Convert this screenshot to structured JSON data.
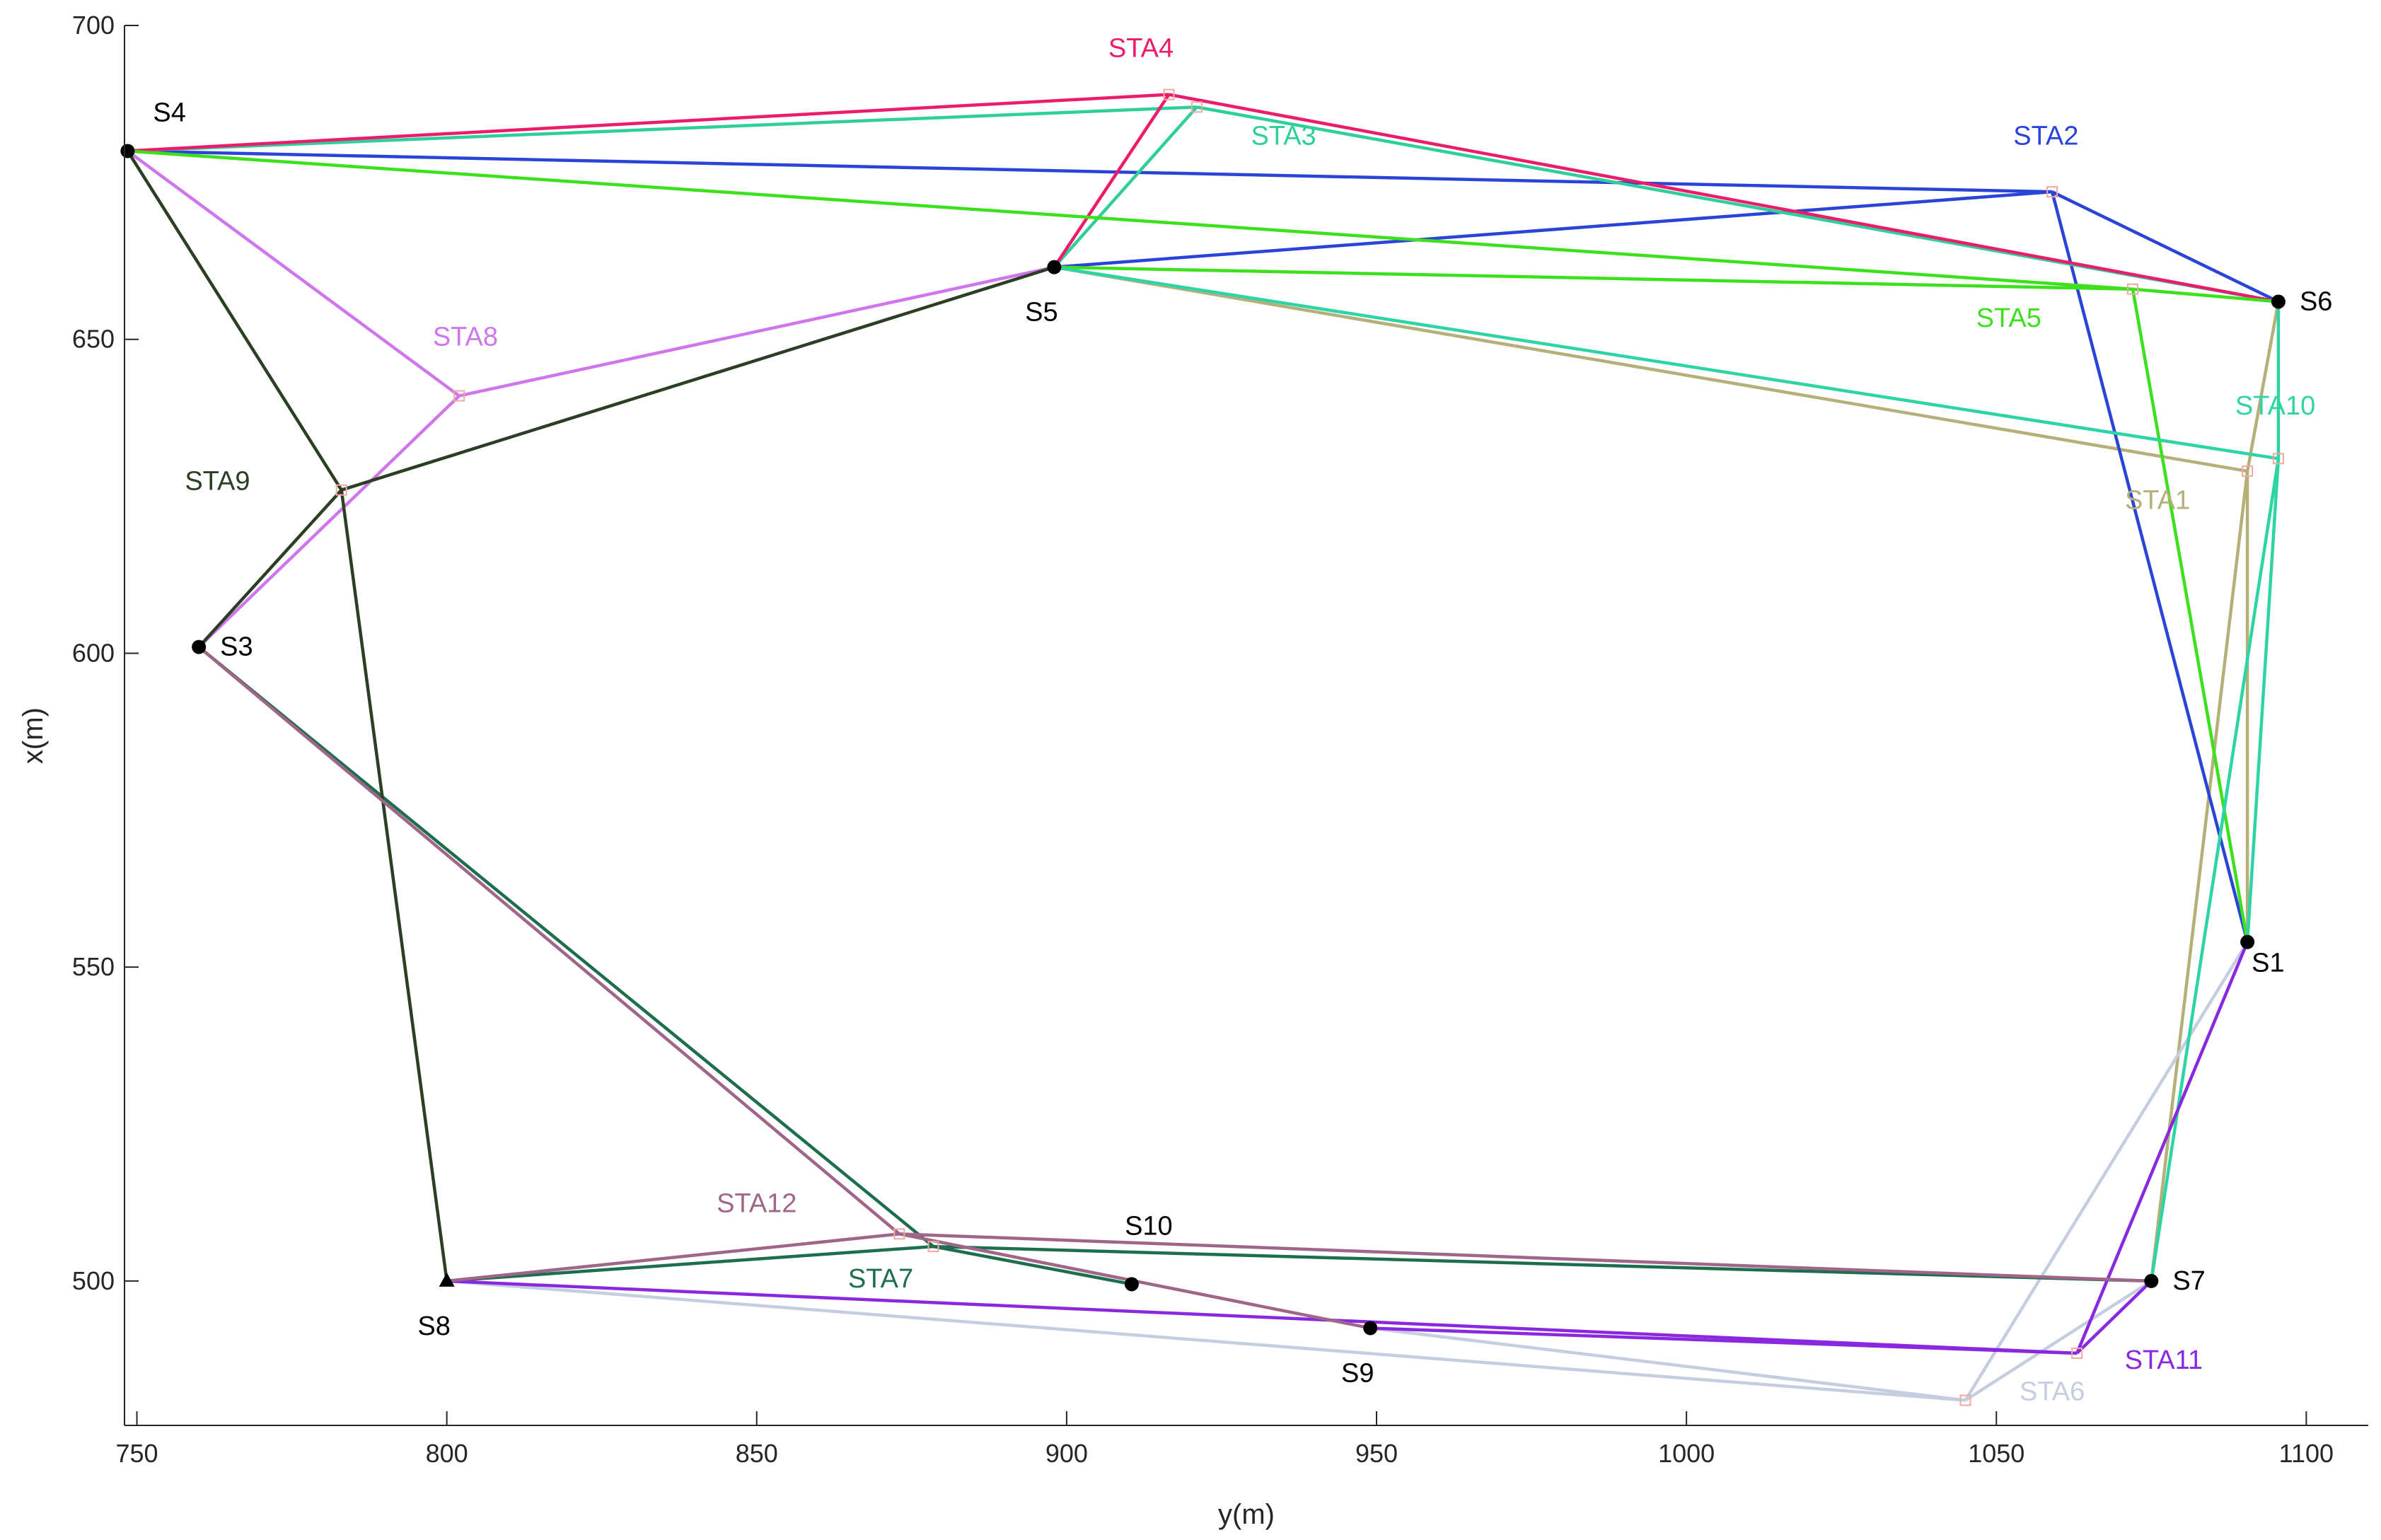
{
  "chart_data": {
    "type": "scatter",
    "xlabel": "y(m)",
    "ylabel": "x(m)",
    "xlim": [
      748,
      1110
    ],
    "ylim": [
      477,
      700
    ],
    "xticks": [
      750,
      800,
      850,
      900,
      950,
      1000,
      1050,
      1100
    ],
    "yticks": [
      500,
      550,
      600,
      650,
      700
    ],
    "grid": false,
    "stations": [
      {
        "name": "S1",
        "y": 1090.5,
        "x": 554,
        "label_pos": "below-right",
        "marker": "dot"
      },
      {
        "name": "S3",
        "y": 760,
        "x": 601,
        "label_pos": "right",
        "marker": "dot"
      },
      {
        "name": "S4",
        "y": 748.5,
        "x": 680,
        "label_pos": "above-right",
        "marker": "dot"
      },
      {
        "name": "S5",
        "y": 898,
        "x": 661.5,
        "label_pos": "below",
        "marker": "dot"
      },
      {
        "name": "S6",
        "y": 1095.5,
        "x": 656,
        "label_pos": "right",
        "marker": "dot"
      },
      {
        "name": "S7",
        "y": 1075,
        "x": 500,
        "label_pos": "right",
        "marker": "dot"
      },
      {
        "name": "S8",
        "y": 800,
        "x": 500,
        "label_pos": "below",
        "marker": "triangle"
      },
      {
        "name": "S9",
        "y": 949,
        "x": 492.5,
        "label_pos": "below",
        "marker": "dot"
      },
      {
        "name": "S10",
        "y": 910.5,
        "x": 499.5,
        "label_pos": "above",
        "marker": "dot"
      }
    ],
    "series": [
      {
        "name": "STA1",
        "color": "#b5b07a",
        "point": {
          "y": 1090.5,
          "x": 629
        },
        "connects": [
          "S5",
          "S6",
          "S7",
          "S1"
        ],
        "label": {
          "y": 1076,
          "x": 623
        }
      },
      {
        "name": "STA2",
        "color": "#2b44d8",
        "point": {
          "y": 1059,
          "x": 673.5
        },
        "connects": [
          "S4",
          "S5",
          "S6",
          "S1"
        ],
        "label": {
          "y": 1058,
          "x": 681
        }
      },
      {
        "name": "STA3",
        "color": "#2ecf9a",
        "point": {
          "y": 921,
          "x": 687
        },
        "connects": [
          "S4",
          "S5",
          "S6"
        ],
        "label": {
          "y": 935,
          "x": 681
        }
      },
      {
        "name": "STA4",
        "color": "#ec1c6c",
        "point": {
          "y": 916.5,
          "x": 689
        },
        "connects": [
          "S4",
          "S5",
          "S6"
        ],
        "label": {
          "y": 912,
          "x": 695
        }
      },
      {
        "name": "STA5",
        "color": "#3ce01c",
        "point": {
          "y": 1072,
          "x": 658
        },
        "connects": [
          "S4",
          "S5",
          "S6",
          "S1"
        ],
        "label": {
          "y": 1052,
          "x": 652
        }
      },
      {
        "name": "STA6",
        "color": "#c5cee0",
        "point": {
          "y": 1045,
          "x": 481
        },
        "connects": [
          "S8",
          "S9",
          "S7",
          "S1"
        ],
        "label": {
          "y": 1059,
          "x": 481
        }
      },
      {
        "name": "STA7",
        "color": "#1c6e4c",
        "point": {
          "y": 878.5,
          "x": 505.5
        },
        "connects": [
          "S3",
          "S8",
          "S10",
          "S7"
        ],
        "label": {
          "y": 870,
          "x": 499
        }
      },
      {
        "name": "STA8",
        "color": "#d076ec",
        "point": {
          "y": 802,
          "x": 641
        },
        "connects": [
          "S4",
          "S5",
          "S3"
        ],
        "label": {
          "y": 803,
          "x": 649
        }
      },
      {
        "name": "STA9",
        "color": "#2b3f24",
        "point": {
          "y": 783,
          "x": 626
        },
        "connects": [
          "S4",
          "S5",
          "S3",
          "S8"
        ],
        "label": {
          "y": 763,
          "x": 626
        }
      },
      {
        "name": "STA10",
        "color": "#2ed4a4",
        "point": {
          "y": 1095.5,
          "x": 631
        },
        "connects": [
          "S5",
          "S6",
          "S7",
          "S1"
        ],
        "label": {
          "y": 1095,
          "x": 638
        }
      },
      {
        "name": "STA11",
        "color": "#8a28e0",
        "point": {
          "y": 1063,
          "x": 488.5
        },
        "connects": [
          "S8",
          "S9",
          "S7",
          "S1"
        ],
        "label": {
          "y": 1077,
          "x": 486
        }
      },
      {
        "name": "STA12",
        "color": "#a0668a",
        "point": {
          "y": 873,
          "x": 507.5
        },
        "connects": [
          "S3",
          "S8",
          "S9",
          "S7"
        ],
        "label": {
          "y": 850,
          "x": 511
        }
      }
    ]
  }
}
